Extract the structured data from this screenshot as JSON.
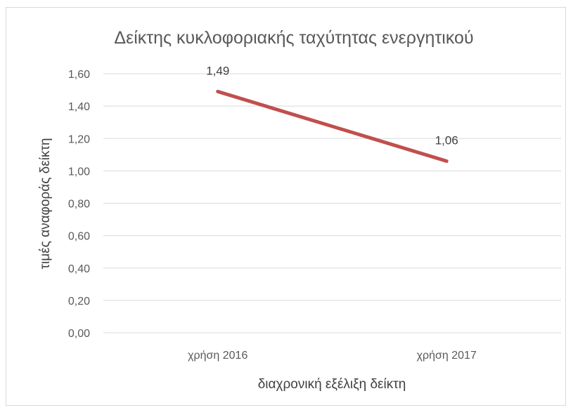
{
  "chart_data": {
    "type": "line",
    "title": "Δείκτης κυκλοφοριακής ταχύτητας ενεργητικού",
    "xlabel": "διαχρονική εξέλιξη δείκτη",
    "ylabel": "τιμές αναφοράς δείκτη",
    "categories": [
      "χρήση 2016",
      "χρήση 2017"
    ],
    "series": [
      {
        "values": [
          1.49,
          1.06
        ],
        "labels": [
          "1,49",
          "1,06"
        ],
        "color": "#c0504d"
      }
    ],
    "ylim": [
      0,
      1.6
    ],
    "yticks": [
      "0,00",
      "0,20",
      "0,40",
      "0,60",
      "0,80",
      "1,00",
      "1,20",
      "1,40",
      "1,60"
    ],
    "ytick_values": [
      0,
      0.2,
      0.4,
      0.6,
      0.8,
      1.0,
      1.2,
      1.4,
      1.6
    ],
    "grid": true,
    "legend": "none",
    "gridline_color": "#d9d9d9"
  }
}
